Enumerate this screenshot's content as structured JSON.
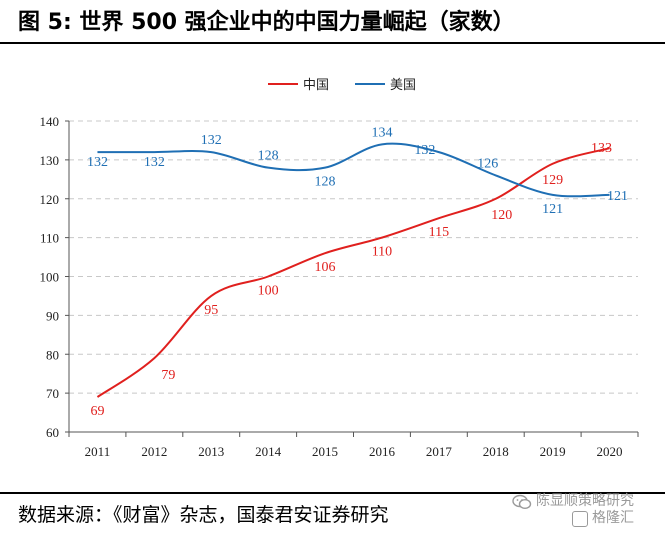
{
  "title": "图 5: 世界 500 强企业中的中国力量崛起（家数）",
  "source": "数据来源：《财富》杂志，国泰君安证券研究",
  "watermark": {
    "line1": "陈显顺策略研究",
    "line2": "格隆汇",
    "icon": "wechat-icon"
  },
  "colors": {
    "china": "#e0201e",
    "usa": "#1f6fb4",
    "grid": "#c8c8c8"
  },
  "chart_data": {
    "type": "line",
    "categories": [
      "2011",
      "2012",
      "2013",
      "2014",
      "2015",
      "2016",
      "2017",
      "2018",
      "2019",
      "2020"
    ],
    "series": [
      {
        "name": "中国",
        "color": "#e0201e",
        "values": [
          69,
          79,
          95,
          100,
          106,
          110,
          115,
          120,
          129,
          133
        ],
        "labels": [
          "69",
          "79",
          "95",
          "100",
          "106",
          "110",
          "115",
          "120",
          "129",
          "133"
        ]
      },
      {
        "name": "美国",
        "color": "#1f6fb4",
        "values": [
          132,
          132,
          132,
          128,
          128,
          134,
          132,
          126,
          121,
          121
        ],
        "labels": [
          "132",
          "132",
          "132",
          "128",
          "128",
          "134",
          "132",
          "126",
          "121",
          "121"
        ]
      }
    ],
    "ylim": [
      60,
      140
    ],
    "yticks": [
      60,
      70,
      80,
      90,
      100,
      110,
      120,
      130,
      140
    ],
    "grid": true,
    "legend": "top-center",
    "smooth": true
  }
}
